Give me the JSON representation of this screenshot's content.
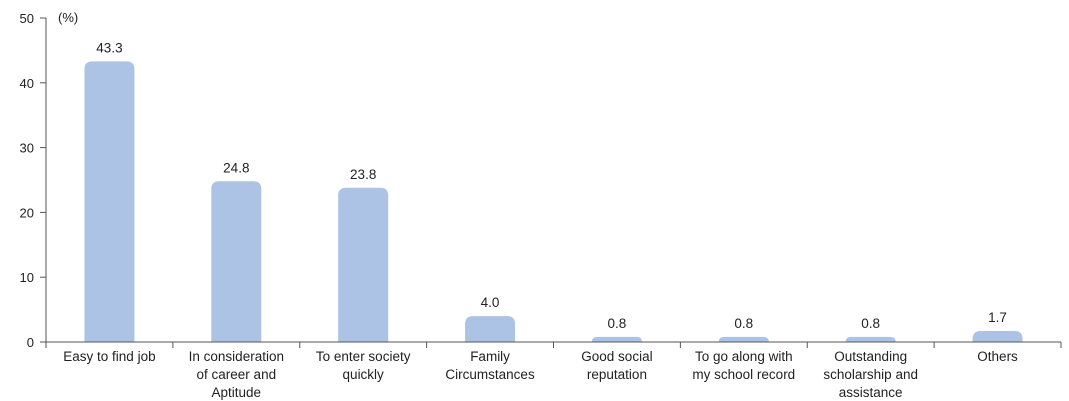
{
  "chart_data": {
    "type": "bar",
    "unit_label": "(%)",
    "categories": [
      "Easy to find job",
      "In consideration of career and Aptitude",
      "To enter society quickly",
      "Family Circumstances",
      "Good social reputation",
      "To go along with my school record",
      "Outstanding scholarship and assistance",
      "Others"
    ],
    "category_lines": [
      [
        "Easy to find job"
      ],
      [
        "In consideration",
        "of career and",
        "Aptitude"
      ],
      [
        "To enter society",
        "quickly"
      ],
      [
        "Family",
        "Circumstances"
      ],
      [
        "Good social",
        "reputation"
      ],
      [
        "To go along with",
        "my school record"
      ],
      [
        "Outstanding",
        "scholarship and",
        "assistance"
      ],
      [
        "Others"
      ]
    ],
    "values": [
      43.3,
      24.8,
      23.8,
      4.0,
      0.8,
      0.8,
      0.8,
      1.7
    ],
    "value_labels": [
      "43.3",
      "24.8",
      "23.8",
      "4.0",
      "0.8",
      "0.8",
      "0.8",
      "1.7"
    ],
    "ylim": [
      0,
      50
    ],
    "yticks": [
      0,
      10,
      20,
      30,
      40,
      50
    ],
    "bar_color": "#adc3e5",
    "axis_color": "#555555",
    "grid": false,
    "legend": "none"
  }
}
